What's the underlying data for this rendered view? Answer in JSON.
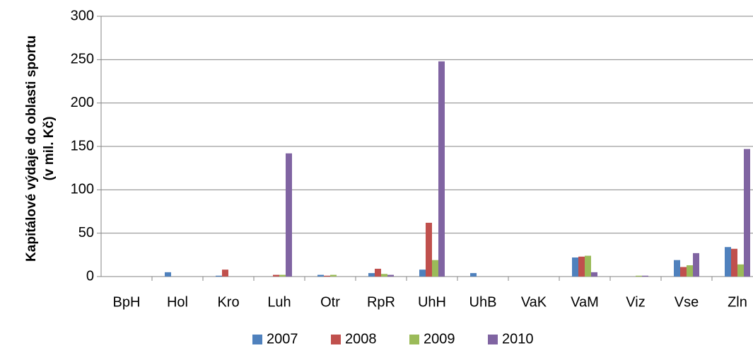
{
  "chart_data": {
    "type": "bar",
    "y_label_lines": [
      "Kapitálové výdaje do oblasti sportu",
      "(v mil. Kč)"
    ],
    "categories": [
      "BpH",
      "Hol",
      "Kro",
      "Luh",
      "Otr",
      "RpR",
      "UhH",
      "UhB",
      "VaK",
      "VaM",
      "Viz",
      "Vse",
      "Zln"
    ],
    "series": [
      {
        "name": "2007",
        "color": "#4f81bd",
        "values": [
          0,
          5,
          1,
          0,
          2,
          4,
          8,
          4,
          0,
          22,
          0,
          19,
          34
        ]
      },
      {
        "name": "2008",
        "color": "#c0504d",
        "values": [
          0,
          0,
          8,
          2,
          1,
          9,
          62,
          0,
          0,
          23,
          0,
          11,
          32
        ]
      },
      {
        "name": "2009",
        "color": "#9bbb59",
        "values": [
          0,
          0,
          0,
          2,
          2,
          3,
          19,
          0,
          0,
          24,
          1,
          13,
          14
        ]
      },
      {
        "name": "2010",
        "color": "#8064a2",
        "values": [
          0,
          0,
          0,
          142,
          0,
          2,
          248,
          0,
          0,
          5,
          1,
          27,
          147
        ]
      }
    ],
    "ylim": [
      0,
      300
    ],
    "yticks": [
      0,
      50,
      100,
      150,
      200,
      250,
      300
    ],
    "grid": true,
    "legend": "bottom"
  }
}
